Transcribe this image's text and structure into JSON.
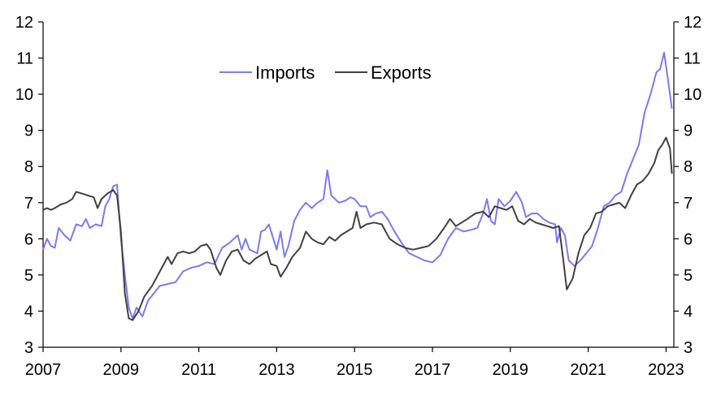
{
  "chart_data": {
    "type": "line",
    "title": "",
    "xlabel": "",
    "ylabel": "",
    "xlim": [
      2007.0,
      2023.2
    ],
    "ylim": [
      3,
      12
    ],
    "x_ticks": [
      "2007",
      "2009",
      "2011",
      "2013",
      "2015",
      "2017",
      "2019",
      "2021",
      "2023"
    ],
    "y_ticks": [
      "3",
      "4",
      "5",
      "6",
      "7",
      "8",
      "9",
      "10",
      "11",
      "12"
    ],
    "grid": false,
    "dual_y_axis": true,
    "legend": {
      "placement": "top-center",
      "entries": [
        "Imports",
        "Exports"
      ]
    },
    "series": [
      {
        "name": "Imports",
        "color": "#7b7bea",
        "points": [
          [
            2007.0,
            5.7
          ],
          [
            2007.1,
            6.0
          ],
          [
            2007.2,
            5.8
          ],
          [
            2007.3,
            5.75
          ],
          [
            2007.4,
            6.3
          ],
          [
            2007.55,
            6.1
          ],
          [
            2007.7,
            5.95
          ],
          [
            2007.85,
            6.4
          ],
          [
            2008.0,
            6.35
          ],
          [
            2008.1,
            6.55
          ],
          [
            2008.2,
            6.3
          ],
          [
            2008.35,
            6.4
          ],
          [
            2008.5,
            6.35
          ],
          [
            2008.6,
            6.9
          ],
          [
            2008.7,
            7.1
          ],
          [
            2008.8,
            7.45
          ],
          [
            2008.9,
            7.5
          ],
          [
            2009.0,
            6.0
          ],
          [
            2009.1,
            5.0
          ],
          [
            2009.2,
            4.1
          ],
          [
            2009.3,
            3.8
          ],
          [
            2009.4,
            4.1
          ],
          [
            2009.55,
            3.85
          ],
          [
            2009.7,
            4.3
          ],
          [
            2009.85,
            4.5
          ],
          [
            2010.0,
            4.7
          ],
          [
            2010.2,
            4.75
          ],
          [
            2010.4,
            4.8
          ],
          [
            2010.6,
            5.1
          ],
          [
            2010.8,
            5.2
          ],
          [
            2011.0,
            5.25
          ],
          [
            2011.2,
            5.35
          ],
          [
            2011.4,
            5.3
          ],
          [
            2011.6,
            5.75
          ],
          [
            2011.8,
            5.9
          ],
          [
            2012.0,
            6.1
          ],
          [
            2012.1,
            5.7
          ],
          [
            2012.2,
            6.0
          ],
          [
            2012.3,
            5.7
          ],
          [
            2012.5,
            5.6
          ],
          [
            2012.6,
            6.2
          ],
          [
            2012.7,
            6.25
          ],
          [
            2012.8,
            6.4
          ],
          [
            2012.9,
            6.05
          ],
          [
            2013.0,
            5.7
          ],
          [
            2013.1,
            6.2
          ],
          [
            2013.2,
            5.5
          ],
          [
            2013.3,
            5.8
          ],
          [
            2013.45,
            6.5
          ],
          [
            2013.6,
            6.8
          ],
          [
            2013.75,
            7.0
          ],
          [
            2013.9,
            6.85
          ],
          [
            2014.05,
            7.0
          ],
          [
            2014.2,
            7.1
          ],
          [
            2014.3,
            7.9
          ],
          [
            2014.4,
            7.2
          ],
          [
            2014.5,
            7.1
          ],
          [
            2014.6,
            7.0
          ],
          [
            2014.75,
            7.05
          ],
          [
            2014.9,
            7.15
          ],
          [
            2015.0,
            7.1
          ],
          [
            2015.15,
            6.9
          ],
          [
            2015.3,
            6.9
          ],
          [
            2015.4,
            6.6
          ],
          [
            2015.55,
            6.7
          ],
          [
            2015.7,
            6.75
          ],
          [
            2015.85,
            6.55
          ],
          [
            2016.0,
            6.25
          ],
          [
            2016.2,
            5.9
          ],
          [
            2016.4,
            5.6
          ],
          [
            2016.6,
            5.5
          ],
          [
            2016.8,
            5.4
          ],
          [
            2017.0,
            5.35
          ],
          [
            2017.2,
            5.55
          ],
          [
            2017.4,
            6.0
          ],
          [
            2017.6,
            6.3
          ],
          [
            2017.8,
            6.2
          ],
          [
            2018.0,
            6.25
          ],
          [
            2018.15,
            6.3
          ],
          [
            2018.3,
            6.7
          ],
          [
            2018.4,
            7.1
          ],
          [
            2018.5,
            6.5
          ],
          [
            2018.6,
            6.4
          ],
          [
            2018.7,
            7.1
          ],
          [
            2018.85,
            6.9
          ],
          [
            2019.0,
            7.05
          ],
          [
            2019.15,
            7.3
          ],
          [
            2019.3,
            7.0
          ],
          [
            2019.4,
            6.6
          ],
          [
            2019.55,
            6.7
          ],
          [
            2019.7,
            6.7
          ],
          [
            2019.85,
            6.55
          ],
          [
            2020.0,
            6.45
          ],
          [
            2020.15,
            6.4
          ],
          [
            2020.2,
            5.9
          ],
          [
            2020.3,
            6.3
          ],
          [
            2020.4,
            6.1
          ],
          [
            2020.5,
            5.4
          ],
          [
            2020.65,
            5.25
          ],
          [
            2020.8,
            5.4
          ],
          [
            2020.95,
            5.6
          ],
          [
            2021.1,
            5.8
          ],
          [
            2021.25,
            6.3
          ],
          [
            2021.4,
            6.9
          ],
          [
            2021.55,
            7.0
          ],
          [
            2021.7,
            7.2
          ],
          [
            2021.85,
            7.3
          ],
          [
            2022.0,
            7.8
          ],
          [
            2022.15,
            8.2
          ],
          [
            2022.3,
            8.6
          ],
          [
            2022.45,
            9.5
          ],
          [
            2022.6,
            10.0
          ],
          [
            2022.75,
            10.6
          ],
          [
            2022.85,
            10.7
          ],
          [
            2022.95,
            11.15
          ],
          [
            2023.05,
            10.4
          ],
          [
            2023.15,
            9.6
          ]
        ]
      },
      {
        "name": "Exports",
        "color": "#404040",
        "points": [
          [
            2007.0,
            6.8
          ],
          [
            2007.1,
            6.85
          ],
          [
            2007.2,
            6.8
          ],
          [
            2007.3,
            6.85
          ],
          [
            2007.45,
            6.95
          ],
          [
            2007.6,
            7.0
          ],
          [
            2007.75,
            7.1
          ],
          [
            2007.85,
            7.3
          ],
          [
            2008.0,
            7.25
          ],
          [
            2008.15,
            7.2
          ],
          [
            2008.3,
            7.15
          ],
          [
            2008.4,
            6.85
          ],
          [
            2008.5,
            7.1
          ],
          [
            2008.65,
            7.25
          ],
          [
            2008.8,
            7.35
          ],
          [
            2008.9,
            7.2
          ],
          [
            2009.0,
            6.2
          ],
          [
            2009.1,
            4.5
          ],
          [
            2009.2,
            3.8
          ],
          [
            2009.3,
            3.75
          ],
          [
            2009.45,
            4.0
          ],
          [
            2009.6,
            4.4
          ],
          [
            2009.8,
            4.7
          ],
          [
            2009.95,
            5.0
          ],
          [
            2010.1,
            5.3
          ],
          [
            2010.2,
            5.5
          ],
          [
            2010.3,
            5.3
          ],
          [
            2010.45,
            5.6
          ],
          [
            2010.6,
            5.65
          ],
          [
            2010.75,
            5.6
          ],
          [
            2010.9,
            5.65
          ],
          [
            2011.05,
            5.8
          ],
          [
            2011.2,
            5.85
          ],
          [
            2011.3,
            5.7
          ],
          [
            2011.45,
            5.2
          ],
          [
            2011.55,
            5.0
          ],
          [
            2011.7,
            5.4
          ],
          [
            2011.85,
            5.65
          ],
          [
            2012.0,
            5.7
          ],
          [
            2012.15,
            5.4
          ],
          [
            2012.3,
            5.3
          ],
          [
            2012.45,
            5.45
          ],
          [
            2012.6,
            5.55
          ],
          [
            2012.75,
            5.65
          ],
          [
            2012.85,
            5.3
          ],
          [
            2013.0,
            5.25
          ],
          [
            2013.1,
            4.95
          ],
          [
            2013.25,
            5.2
          ],
          [
            2013.4,
            5.5
          ],
          [
            2013.6,
            5.75
          ],
          [
            2013.75,
            6.2
          ],
          [
            2013.9,
            6.0
          ],
          [
            2014.05,
            5.9
          ],
          [
            2014.2,
            5.85
          ],
          [
            2014.35,
            6.05
          ],
          [
            2014.5,
            5.95
          ],
          [
            2014.65,
            6.1
          ],
          [
            2014.8,
            6.2
          ],
          [
            2014.95,
            6.3
          ],
          [
            2015.05,
            6.75
          ],
          [
            2015.15,
            6.3
          ],
          [
            2015.3,
            6.4
          ],
          [
            2015.5,
            6.45
          ],
          [
            2015.7,
            6.4
          ],
          [
            2015.9,
            6.0
          ],
          [
            2016.1,
            5.85
          ],
          [
            2016.3,
            5.75
          ],
          [
            2016.5,
            5.7
          ],
          [
            2016.7,
            5.75
          ],
          [
            2016.9,
            5.8
          ],
          [
            2017.1,
            6.0
          ],
          [
            2017.3,
            6.3
          ],
          [
            2017.45,
            6.55
          ],
          [
            2017.6,
            6.35
          ],
          [
            2017.75,
            6.45
          ],
          [
            2017.9,
            6.55
          ],
          [
            2018.1,
            6.7
          ],
          [
            2018.3,
            6.75
          ],
          [
            2018.45,
            6.6
          ],
          [
            2018.6,
            6.9
          ],
          [
            2018.75,
            6.85
          ],
          [
            2018.9,
            6.8
          ],
          [
            2019.05,
            6.9
          ],
          [
            2019.2,
            6.5
          ],
          [
            2019.35,
            6.4
          ],
          [
            2019.5,
            6.55
          ],
          [
            2019.65,
            6.45
          ],
          [
            2019.8,
            6.4
          ],
          [
            2019.95,
            6.35
          ],
          [
            2020.1,
            6.3
          ],
          [
            2020.25,
            6.35
          ],
          [
            2020.35,
            5.5
          ],
          [
            2020.45,
            4.6
          ],
          [
            2020.6,
            4.9
          ],
          [
            2020.75,
            5.6
          ],
          [
            2020.9,
            6.1
          ],
          [
            2021.05,
            6.3
          ],
          [
            2021.2,
            6.7
          ],
          [
            2021.35,
            6.75
          ],
          [
            2021.5,
            6.9
          ],
          [
            2021.65,
            6.95
          ],
          [
            2021.8,
            7.0
          ],
          [
            2021.95,
            6.85
          ],
          [
            2022.1,
            7.2
          ],
          [
            2022.25,
            7.5
          ],
          [
            2022.4,
            7.6
          ],
          [
            2022.55,
            7.8
          ],
          [
            2022.7,
            8.1
          ],
          [
            2022.8,
            8.45
          ],
          [
            2022.9,
            8.6
          ],
          [
            2023.0,
            8.8
          ],
          [
            2023.1,
            8.5
          ],
          [
            2023.15,
            7.8
          ]
        ]
      }
    ]
  }
}
